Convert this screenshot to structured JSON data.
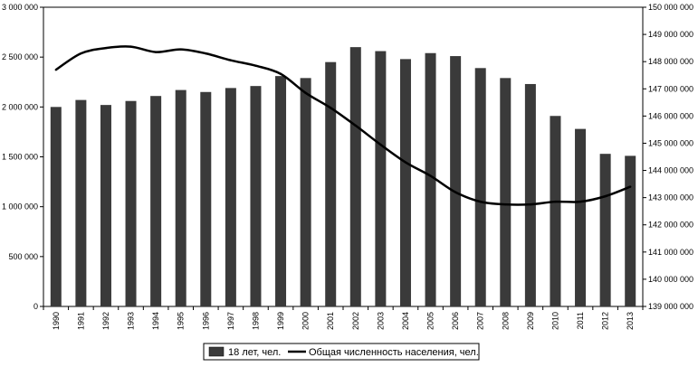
{
  "chart_data": {
    "type": "bar",
    "title": "",
    "xlabel": "",
    "ylabel": "",
    "categories": [
      "1990",
      "1991",
      "1992",
      "1993",
      "1994",
      "1995",
      "1996",
      "1997",
      "1998",
      "1999",
      "2000",
      "2001",
      "2002",
      "2003",
      "2004",
      "2005",
      "2006",
      "2007",
      "2008",
      "2009",
      "2010",
      "2011",
      "2012",
      "2013"
    ],
    "series": [
      {
        "name": "18 лет, чел.",
        "type": "bar",
        "axis": "left",
        "color": "#3a3a3a",
        "values": [
          2000000,
          2070000,
          2020000,
          2060000,
          2110000,
          2170000,
          2150000,
          2190000,
          2210000,
          2310000,
          2290000,
          2450000,
          2600000,
          2560000,
          2480000,
          2540000,
          2510000,
          2390000,
          2290000,
          2230000,
          1910000,
          1780000,
          1530000,
          1510000
        ]
      },
      {
        "name": "Общая численность населения, чел.",
        "type": "line",
        "axis": "right",
        "color": "#000000",
        "values": [
          147700000,
          148300000,
          148500000,
          148550000,
          148350000,
          148450000,
          148300000,
          148050000,
          147850000,
          147550000,
          146850000,
          146300000,
          145650000,
          144950000,
          144300000,
          143800000,
          143200000,
          142850000,
          142750000,
          142750000,
          142850000,
          142850000,
          143050000,
          143400000
        ]
      }
    ],
    "ylim": [
      0,
      3000000
    ],
    "y2lim": [
      139000000,
      150000000
    ],
    "y_ticks": [
      "0",
      "500 000",
      "1 000 000",
      "1 500 000",
      "2 000 000",
      "2 500 000",
      "3 000 000"
    ],
    "y2_ticks": [
      "139 000 000",
      "140 000 000",
      "141 000 000",
      "142 000 000",
      "143 000 000",
      "144 000 000",
      "145 000 000",
      "146 000 000",
      "147 000 000",
      "148 000 000",
      "149 000 000",
      "150 000 000"
    ],
    "grid": false,
    "legend_position": "bottom"
  }
}
